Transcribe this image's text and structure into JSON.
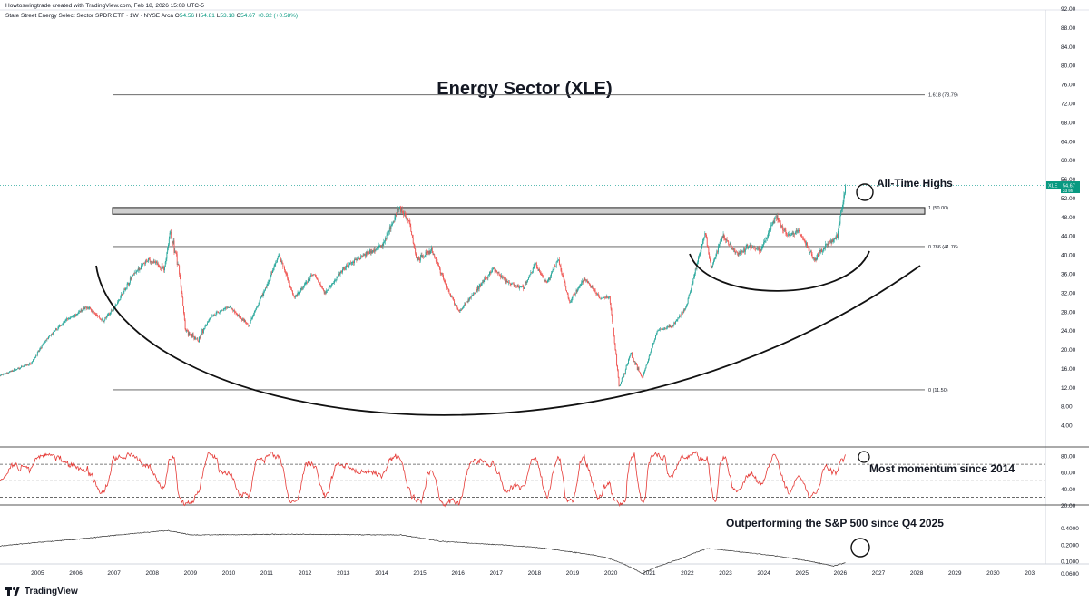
{
  "header": {
    "credit": "Howtoswingtrade created with TradingView.com, Feb 18, 2026 15:08 UTC-5",
    "symbol_line": "State Street Energy Select Sector SPDR ETF · 1W · NYSE Arca",
    "ohlc": {
      "open_label": "O",
      "open": "54.56",
      "high_label": "H",
      "high": "54.81",
      "low_label": "L",
      "low": "53.18",
      "close_label": "C",
      "close": "54.67",
      "change": "+0.32 (+0.58%)"
    }
  },
  "footer": {
    "brand": "TradingView"
  },
  "colors": {
    "up": "#26a69a",
    "down": "#ef5350",
    "rsi": "#e53935",
    "ratio": "#333333",
    "last_tag": "#089981"
  },
  "chart_data": [
    {
      "type": "candlestick",
      "title": "Energy Sector (XLE)",
      "y_axis": {
        "side": "right",
        "ticks": [
          "92.00",
          "88.00",
          "84.00",
          "80.00",
          "76.00",
          "72.00",
          "68.00",
          "64.00",
          "60.00",
          "56.00",
          "52.00",
          "48.00",
          "44.00",
          "40.00",
          "36.00",
          "32.00",
          "28.00",
          "24.00",
          "20.00",
          "16.00",
          "12.00",
          "8.00",
          "4.00"
        ],
        "range": [
          0,
          94
        ]
      },
      "x_axis": {
        "labels": [
          "2005",
          "2006",
          "2007",
          "2008",
          "2009",
          "2010",
          "2011",
          "2012",
          "2013",
          "2014",
          "2015",
          "2016",
          "2017",
          "2018",
          "2019",
          "2020",
          "2021",
          "2022",
          "2023",
          "2024",
          "2025",
          "2026",
          "2027",
          "2028",
          "2029",
          "2030",
          "203"
        ]
      },
      "last_price": {
        "symbol": "XLE",
        "value": "54.67",
        "countdown": "2d 9h"
      },
      "anchors": [
        {
          "x": 2004.0,
          "y": 14.5
        },
        {
          "x": 2004.8,
          "y": 17.0
        },
        {
          "x": 2005.2,
          "y": 22.0
        },
        {
          "x": 2005.7,
          "y": 26.0
        },
        {
          "x": 2006.3,
          "y": 29.0
        },
        {
          "x": 2006.7,
          "y": 26.0
        },
        {
          "x": 2007.0,
          "y": 29.0
        },
        {
          "x": 2007.5,
          "y": 36.0
        },
        {
          "x": 2007.9,
          "y": 39.0
        },
        {
          "x": 2008.3,
          "y": 37.0
        },
        {
          "x": 2008.45,
          "y": 45.0
        },
        {
          "x": 2008.7,
          "y": 36.0
        },
        {
          "x": 2008.85,
          "y": 24.0
        },
        {
          "x": 2009.2,
          "y": 22.0
        },
        {
          "x": 2009.5,
          "y": 27.0
        },
        {
          "x": 2010.0,
          "y": 29.0
        },
        {
          "x": 2010.5,
          "y": 25.0
        },
        {
          "x": 2011.0,
          "y": 34.0
        },
        {
          "x": 2011.3,
          "y": 40.0
        },
        {
          "x": 2011.7,
          "y": 31.0
        },
        {
          "x": 2012.2,
          "y": 36.0
        },
        {
          "x": 2012.5,
          "y": 32.0
        },
        {
          "x": 2013.0,
          "y": 37.0
        },
        {
          "x": 2013.5,
          "y": 40.0
        },
        {
          "x": 2014.0,
          "y": 42.0
        },
        {
          "x": 2014.45,
          "y": 50.0
        },
        {
          "x": 2014.7,
          "y": 47.0
        },
        {
          "x": 2014.9,
          "y": 39.0
        },
        {
          "x": 2015.3,
          "y": 41.0
        },
        {
          "x": 2015.7,
          "y": 33.0
        },
        {
          "x": 2016.0,
          "y": 28.0
        },
        {
          "x": 2016.3,
          "y": 31.0
        },
        {
          "x": 2016.9,
          "y": 37.0
        },
        {
          "x": 2017.3,
          "y": 34.0
        },
        {
          "x": 2017.7,
          "y": 33.0
        },
        {
          "x": 2018.0,
          "y": 38.0
        },
        {
          "x": 2018.3,
          "y": 34.0
        },
        {
          "x": 2018.6,
          "y": 39.0
        },
        {
          "x": 2018.9,
          "y": 30.0
        },
        {
          "x": 2019.3,
          "y": 35.0
        },
        {
          "x": 2019.7,
          "y": 31.0
        },
        {
          "x": 2019.95,
          "y": 31.0
        },
        {
          "x": 2020.2,
          "y": 12.0
        },
        {
          "x": 2020.5,
          "y": 19.0
        },
        {
          "x": 2020.8,
          "y": 14.0
        },
        {
          "x": 2021.2,
          "y": 24.0
        },
        {
          "x": 2021.6,
          "y": 25.0
        },
        {
          "x": 2021.95,
          "y": 29.0
        },
        {
          "x": 2022.3,
          "y": 40.0
        },
        {
          "x": 2022.45,
          "y": 45.0
        },
        {
          "x": 2022.6,
          "y": 37.0
        },
        {
          "x": 2022.9,
          "y": 44.0
        },
        {
          "x": 2023.3,
          "y": 40.0
        },
        {
          "x": 2023.6,
          "y": 42.0
        },
        {
          "x": 2023.9,
          "y": 41.0
        },
        {
          "x": 2024.3,
          "y": 48.0
        },
        {
          "x": 2024.6,
          "y": 44.0
        },
        {
          "x": 2024.9,
          "y": 45.0
        },
        {
          "x": 2025.3,
          "y": 39.0
        },
        {
          "x": 2025.6,
          "y": 42.0
        },
        {
          "x": 2025.9,
          "y": 44.0
        },
        {
          "x": 2026.13,
          "y": 54.67
        }
      ],
      "annotations": [
        {
          "type": "fib_level",
          "label": "1.618 (73.79)",
          "value": 73.79
        },
        {
          "type": "fib_level",
          "label": "1 (50.00)",
          "value": 50.0
        },
        {
          "type": "fib_level",
          "label": "0.786 (41.76)",
          "value": 41.76
        },
        {
          "type": "fib_level",
          "label": "0 (11.50)",
          "value": 11.5
        },
        {
          "type": "resistance_zone",
          "from": 48.6,
          "to": 50.0
        },
        {
          "type": "text",
          "text": "All-Time Highs"
        }
      ]
    },
    {
      "type": "line",
      "name": "RSI",
      "y_axis": {
        "ticks": [
          "80.00",
          "60.00",
          "40.00",
          "20.00"
        ],
        "range": [
          10,
          90
        ]
      },
      "levels": [
        70,
        50,
        30
      ],
      "annotation": "Most momentum since 2014"
    },
    {
      "type": "line",
      "name": "XLE / S&P 500 ratio",
      "y_axis": {
        "ticks": [
          "0.4000",
          "0.2000",
          "0.1000",
          "0.0600"
        ],
        "scale": "log"
      },
      "anchors": [
        {
          "x": 2004.0,
          "y": 0.19
        },
        {
          "x": 2006.0,
          "y": 0.25
        },
        {
          "x": 2008.4,
          "y": 0.36
        },
        {
          "x": 2009.0,
          "y": 0.3
        },
        {
          "x": 2011.5,
          "y": 0.31
        },
        {
          "x": 2014.5,
          "y": 0.3
        },
        {
          "x": 2015.5,
          "y": 0.23
        },
        {
          "x": 2018.0,
          "y": 0.18
        },
        {
          "x": 2019.8,
          "y": 0.12
        },
        {
          "x": 2020.8,
          "y": 0.06
        },
        {
          "x": 2021.8,
          "y": 0.11
        },
        {
          "x": 2022.5,
          "y": 0.17
        },
        {
          "x": 2023.3,
          "y": 0.15
        },
        {
          "x": 2024.5,
          "y": 0.12
        },
        {
          "x": 2025.8,
          "y": 0.082
        },
        {
          "x": 2026.13,
          "y": 0.095
        }
      ],
      "annotation": "Outperforming the S&P 500 since Q4 2025"
    }
  ]
}
